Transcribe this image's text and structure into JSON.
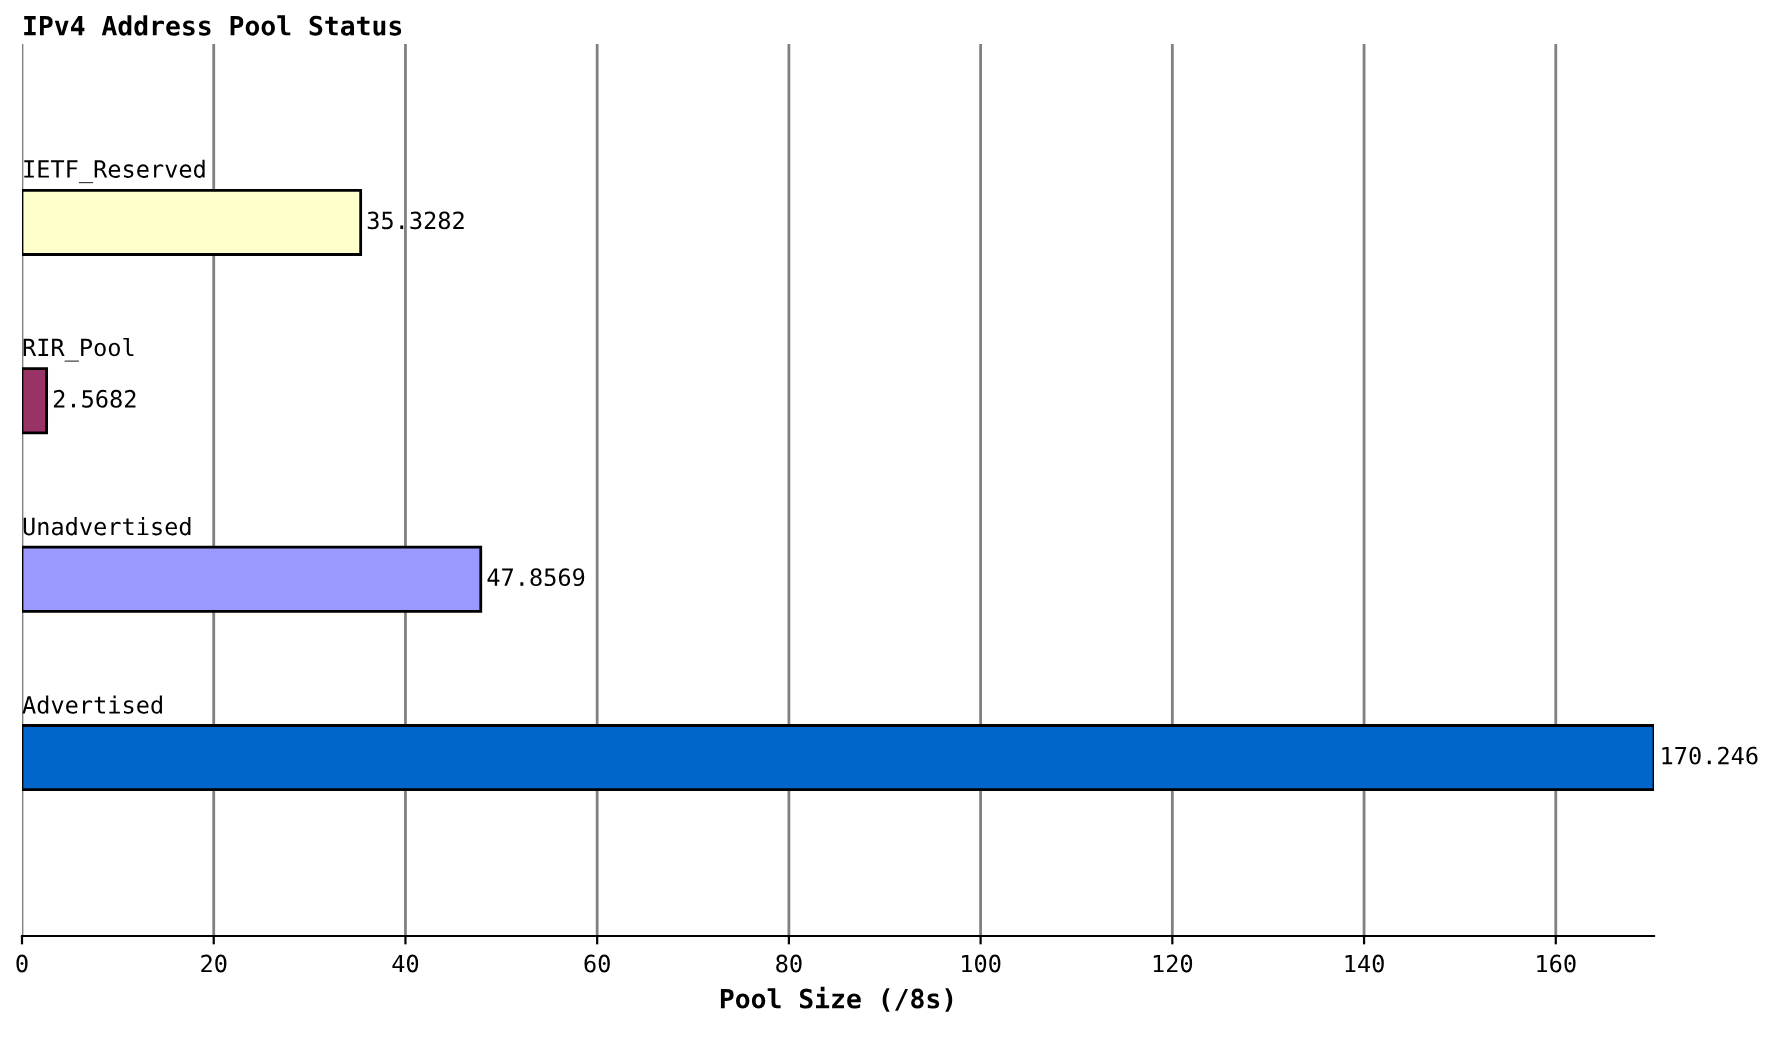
{
  "chart_data": {
    "type": "bar",
    "orientation": "horizontal",
    "title": "IPv4 Address Pool Status",
    "xlabel": "Pool Size (/8s)",
    "categories": [
      "IETF_Reserved",
      "RIR_Pool",
      "Unadvertised",
      "Advertised"
    ],
    "values": [
      35.3282,
      2.5682,
      47.8569,
      170.246
    ],
    "colors": [
      "#ffffcc",
      "#993366",
      "#9999ff",
      "#0066cc"
    ],
    "xlim": [
      0,
      170.246
    ],
    "xticks": [
      0,
      20,
      40,
      60,
      80,
      100,
      120,
      140,
      160
    ],
    "grid": "x",
    "data_labels": true,
    "legend": false
  }
}
